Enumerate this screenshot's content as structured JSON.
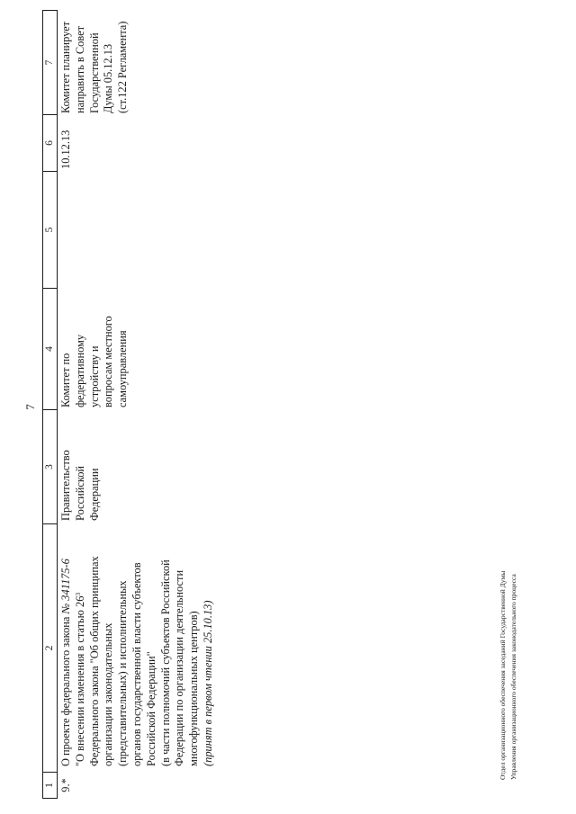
{
  "page": {
    "number": "7",
    "footer_lines": [
      "Отдел организационного обеспечения заседаний Государственной Думы",
      "Управления организационного обеспечения законодательного процесса"
    ]
  },
  "table": {
    "header_cells": [
      "1",
      "2",
      "3",
      "4",
      "5",
      "6",
      "7"
    ],
    "row": {
      "num": "9.*",
      "col2_lines": [
        [
          {
            "t": "О проекте федерального закона "
          },
          {
            "t": "№ 341175-6",
            "i": true
          }
        ],
        [
          {
            "t": "\"О внесении изменения в статью 26"
          },
          {
            "t": "3",
            "s": true
          }
        ],
        [
          {
            "t": "Федерального закона \"Об общих принципах"
          }
        ],
        [
          {
            "t": "организации законодательных"
          }
        ],
        [
          {
            "t": "(представительных) и исполнительных"
          }
        ],
        [
          {
            "t": "органов государственной власти субъектов"
          }
        ],
        [
          {
            "t": "Российской Федерации\""
          }
        ],
        [
          {
            "t": "(в части полномочий субъектов Российской"
          }
        ],
        [
          {
            "t": "Федерации по организации деятельности"
          }
        ],
        [
          {
            "t": "многофункциональных центров)"
          }
        ],
        [
          {
            "t": "(принят в первом чтении 25.10.13)",
            "i": true
          }
        ]
      ],
      "col3_lines": [
        "Правительство",
        "Российской",
        "Федерации"
      ],
      "col4_lines": [
        "Комитет по",
        "федеративному",
        "устройству и",
        "вопросам местного",
        "самоуправления"
      ],
      "col6_date": "10.12.13",
      "col7_lines": [
        "Комитет планирует",
        "направить в Совет",
        "Государственной",
        "Думы 05.12.13",
        "(ст.122 Регламента)"
      ]
    }
  }
}
